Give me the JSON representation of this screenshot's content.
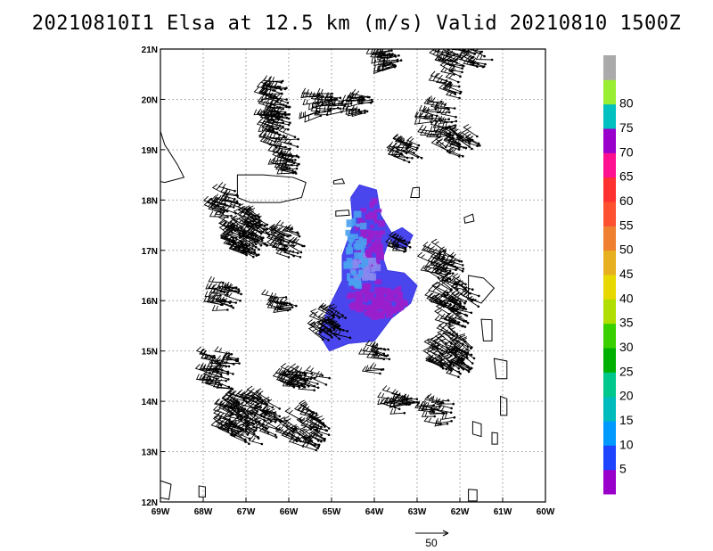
{
  "chart_data": {
    "type": "wind-barb map",
    "title": "20210810I1 Elsa at 12.5 km (m/s) Valid 20210810 1500Z",
    "x_ticks": [
      "69W",
      "68W",
      "67W",
      "66W",
      "65W",
      "64W",
      "63W",
      "62W",
      "61W",
      "60W"
    ],
    "y_ticks": [
      "21N",
      "20N",
      "19N",
      "18N",
      "17N",
      "16N",
      "15N",
      "14N",
      "13N",
      "12N"
    ],
    "xlim": [
      -69,
      -60
    ],
    "ylim": [
      12,
      21
    ],
    "grid": true,
    "colorbar": {
      "labels": [
        "5",
        "10",
        "15",
        "20",
        "25",
        "30",
        "35",
        "40",
        "45",
        "50",
        "55",
        "60",
        "65",
        "70",
        "75",
        "80"
      ],
      "colors": [
        "#9900cc",
        "#1f44ff",
        "#0099ff",
        "#00bbbb",
        "#00c88c",
        "#00b000",
        "#39d000",
        "#b0de00",
        "#e6d800",
        "#e6b020",
        "#ee8030",
        "#ff5030",
        "#ff3030",
        "#ff1090",
        "#9900cc",
        "#00c0c0",
        "#99ee33",
        "#aaaaaa"
      ]
    },
    "reference_vector": {
      "label": "50"
    }
  }
}
